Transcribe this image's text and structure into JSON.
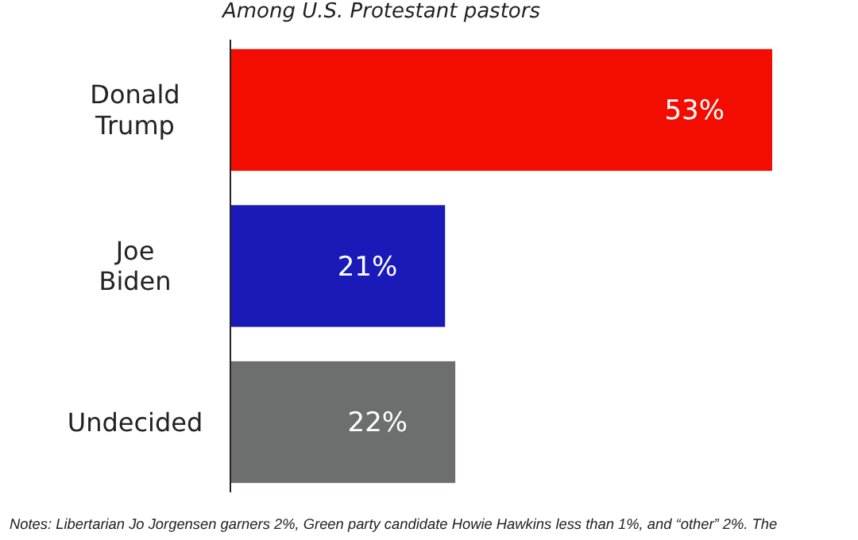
{
  "chart_data": {
    "type": "bar",
    "orientation": "horizontal",
    "subtitle": "Among U.S. Protestant pastors",
    "categories": [
      "Donald Trump",
      "Joe Biden",
      "Undecided"
    ],
    "values": [
      53,
      21,
      22
    ],
    "colors": [
      "#f20d00",
      "#1a1ab8",
      "#6d6e6e"
    ],
    "value_labels": [
      "53%",
      "21%",
      "22%"
    ],
    "annotations": [
      "Notes: Libertarian Jo Jorgensen garners 2%, Green party candidate Howie Hawkins less than 1%, and “other” 2%. The"
    ]
  }
}
